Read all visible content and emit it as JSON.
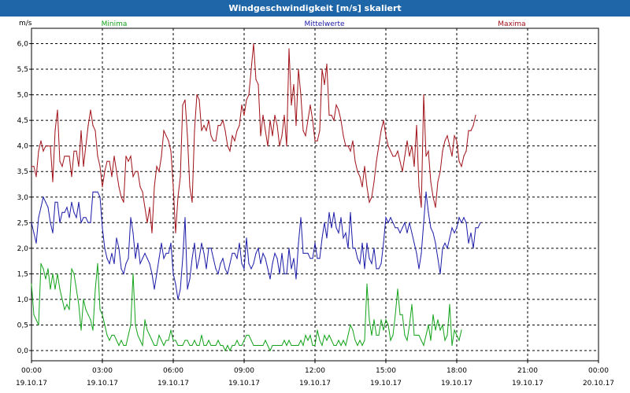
{
  "window": {
    "title": "Windgeschwindigkeit [m/s] skaliert"
  },
  "colors": {
    "titlebar": "#1f66a8",
    "minima": "#13a31a",
    "mittel": "#1a1aa8",
    "maxima": "#a01018",
    "grid": "#000000"
  },
  "chart_data": {
    "type": "line",
    "title": "Windgeschwindigkeit [m/s] skaliert",
    "ylabel": "m/s",
    "ylim": [
      -0.2,
      6.3
    ],
    "xlim": [
      0,
      24
    ],
    "grid": true,
    "legend": "top",
    "yticks": [
      "6,0",
      "5,5",
      "5,0",
      "4,5",
      "4,0",
      "3,5",
      "3,0",
      "2,5",
      "2,0",
      "1,5",
      "1,0",
      "0,5",
      "0,0"
    ],
    "ytick_values": [
      6.0,
      5.5,
      5.0,
      4.5,
      4.0,
      3.5,
      3.0,
      2.5,
      2.0,
      1.5,
      1.0,
      0.5,
      0.0
    ],
    "xticks": [
      {
        "time": "00:00",
        "date": "19.10.17",
        "hour": 0
      },
      {
        "time": "03:00",
        "date": "19.10.17",
        "hour": 3
      },
      {
        "time": "06:00",
        "date": "19.10.17",
        "hour": 6
      },
      {
        "time": "09:00",
        "date": "19.10.17",
        "hour": 9
      },
      {
        "time": "12:00",
        "date": "19.10.17",
        "hour": 12
      },
      {
        "time": "15:00",
        "date": "19.10.17",
        "hour": 15
      },
      {
        "time": "18:00",
        "date": "19.10.17",
        "hour": 18
      },
      {
        "time": "21:00",
        "date": "19.10.17",
        "hour": 21
      },
      {
        "time": "00:00",
        "date": "20.10.17",
        "hour": 24
      }
    ],
    "series": [
      {
        "name": "Minima",
        "color": "#13a31a",
        "legend_position": "left",
        "step_hours": 0.1,
        "values": [
          1.3,
          0.7,
          0.6,
          0.5,
          1.7,
          1.6,
          1.4,
          1.6,
          1.2,
          1.5,
          1.2,
          1.5,
          1.2,
          1.0,
          0.8,
          0.9,
          0.8,
          1.6,
          1.5,
          1.2,
          0.9,
          0.4,
          1.0,
          0.8,
          0.7,
          0.6,
          0.4,
          1.2,
          1.7,
          0.8,
          0.7,
          0.5,
          0.3,
          0.2,
          0.3,
          0.3,
          0.2,
          0.1,
          0.2,
          0.1,
          0.1,
          0.3,
          0.5,
          1.5,
          0.5,
          0.3,
          0.2,
          0.1,
          0.6,
          0.4,
          0.3,
          0.2,
          0.1,
          0.1,
          0.3,
          0.2,
          0.1,
          0.2,
          0.2,
          0.4,
          0.2,
          0.2,
          0.1,
          0.1,
          0.1,
          0.2,
          0.2,
          0.1,
          0.1,
          0.2,
          0.1,
          0.1,
          0.3,
          0.1,
          0.1,
          0.2,
          0.1,
          0.1,
          0.1,
          0.2,
          0.1,
          0.1,
          0.0,
          0.1,
          0.0,
          0.1,
          0.1,
          0.2,
          0.1,
          0.1,
          0.2,
          0.3,
          0.3,
          0.2,
          0.1,
          0.1,
          0.1,
          0.1,
          0.1,
          0.2,
          0.1,
          0.0,
          0.1,
          0.1,
          0.1,
          0.1,
          0.1,
          0.2,
          0.1,
          0.2,
          0.1,
          0.1,
          0.1,
          0.1,
          0.2,
          0.1,
          0.3,
          0.2,
          0.3,
          0.1,
          0.1,
          0.4,
          0.2,
          0.1,
          0.3,
          0.2,
          0.3,
          0.2,
          0.1,
          0.1,
          0.2,
          0.1,
          0.2,
          0.1,
          0.3,
          0.5,
          0.4,
          0.2,
          0.1,
          0.2,
          0.1,
          0.2,
          1.3,
          0.6,
          0.3,
          0.6,
          0.3,
          0.3,
          0.6,
          0.4,
          0.6,
          0.5,
          0.2,
          0.3,
          0.7,
          1.2,
          0.7,
          0.7,
          0.3,
          0.2,
          0.5,
          0.9,
          0.3,
          0.3,
          0.3,
          0.2,
          0.1,
          0.3,
          0.5,
          0.2,
          0.7,
          0.4,
          0.6,
          0.4,
          0.5,
          0.2,
          0.3,
          0.9,
          0.1,
          0.4,
          0.3,
          0.2,
          0.4
        ]
      },
      {
        "name": "Mittelwerte",
        "color": "#1a1aa8",
        "legend_position": "center",
        "step_hours": 0.1,
        "values": [
          2.5,
          2.3,
          2.1,
          2.6,
          2.8,
          3.0,
          2.9,
          2.8,
          2.5,
          2.3,
          2.9,
          2.9,
          2.5,
          2.7,
          2.7,
          2.8,
          2.6,
          2.9,
          2.7,
          2.6,
          2.9,
          2.5,
          2.6,
          2.6,
          2.5,
          2.5,
          3.1,
          3.1,
          3.1,
          3.0,
          2.4,
          2.0,
          1.8,
          1.7,
          1.9,
          1.7,
          2.2,
          2.0,
          1.6,
          1.5,
          1.7,
          1.8,
          2.6,
          2.3,
          1.8,
          2.1,
          1.7,
          1.8,
          1.9,
          1.8,
          1.7,
          1.5,
          1.2,
          1.5,
          1.8,
          2.1,
          1.8,
          1.9,
          1.9,
          2.1,
          1.5,
          1.3,
          1.0,
          1.2,
          1.8,
          2.6,
          1.2,
          1.4,
          1.8,
          2.1,
          1.6,
          1.8,
          2.1,
          1.9,
          1.6,
          2.0,
          2.0,
          1.8,
          1.6,
          1.5,
          1.7,
          1.8,
          1.6,
          1.5,
          1.7,
          1.9,
          1.9,
          1.8,
          2.1,
          1.7,
          1.6,
          2.2,
          1.7,
          1.6,
          1.7,
          1.9,
          2.0,
          1.7,
          1.9,
          1.8,
          1.6,
          1.4,
          1.7,
          1.9,
          1.8,
          1.5,
          1.9,
          1.5,
          1.5,
          2.0,
          1.6,
          1.8,
          1.4,
          2.1,
          2.6,
          1.9,
          1.9,
          1.9,
          1.8,
          1.8,
          2.1,
          1.8,
          1.8,
          2.2,
          2.5,
          2.2,
          2.7,
          2.4,
          2.7,
          2.4,
          2.3,
          2.6,
          2.2,
          2.3,
          2.0,
          2.7,
          2.0,
          2.0,
          1.8,
          1.7,
          2.1,
          1.6,
          2.1,
          1.8,
          1.7,
          2.0,
          1.6,
          1.6,
          1.7,
          2.1,
          2.6,
          2.5,
          2.6,
          2.5,
          2.4,
          2.4,
          2.3,
          2.4,
          2.5,
          2.3,
          2.5,
          2.3,
          2.1,
          1.9,
          1.6,
          1.9,
          2.5,
          3.1,
          2.7,
          2.4,
          2.3,
          2.1,
          1.8,
          1.5,
          2.0,
          2.1,
          2.0,
          2.2,
          2.4,
          2.3,
          2.4,
          2.6,
          2.5,
          2.6,
          2.5,
          2.1,
          2.3,
          2.0,
          2.4,
          2.4,
          2.5
        ]
      },
      {
        "name": "Maxima",
        "color": "#a01018",
        "legend_position": "right",
        "step_hours": 0.1,
        "values": [
          3.6,
          3.6,
          3.4,
          3.9,
          4.1,
          3.9,
          4.0,
          4.0,
          4.0,
          3.3,
          4.3,
          4.7,
          3.7,
          3.6,
          3.8,
          3.8,
          3.8,
          3.4,
          3.9,
          3.9,
          3.6,
          4.3,
          3.6,
          4.0,
          4.4,
          4.7,
          4.4,
          4.3,
          3.8,
          3.6,
          3.2,
          3.5,
          3.7,
          3.7,
          3.4,
          3.8,
          3.5,
          3.2,
          3.0,
          2.9,
          3.8,
          3.7,
          3.8,
          3.4,
          3.5,
          3.5,
          3.2,
          3.1,
          2.8,
          2.5,
          2.8,
          2.3,
          3.2,
          3.6,
          3.5,
          3.8,
          4.3,
          4.2,
          4.1,
          3.9,
          3.2,
          2.3,
          3.0,
          3.4,
          4.8,
          4.9,
          4.2,
          3.2,
          2.9,
          4.3,
          5.0,
          4.9,
          4.3,
          4.4,
          4.3,
          4.5,
          4.2,
          4.1,
          4.1,
          4.4,
          4.4,
          4.5,
          4.3,
          4.0,
          3.9,
          4.2,
          4.1,
          4.3,
          4.4,
          4.8,
          4.6,
          4.9,
          5.0,
          5.5,
          6.0,
          5.3,
          5.2,
          4.2,
          4.6,
          4.3,
          4.0,
          4.5,
          4.2,
          4.6,
          4.4,
          4.0,
          4.2,
          4.6,
          4.0,
          5.9,
          4.8,
          5.2,
          4.4,
          5.5,
          5.0,
          4.3,
          4.2,
          4.5,
          4.8,
          4.5,
          4.1,
          4.1,
          4.3,
          5.5,
          5.2,
          5.6,
          4.6,
          4.6,
          4.5,
          4.8,
          4.7,
          4.5,
          4.2,
          4.0,
          4.0,
          3.9,
          4.1,
          3.7,
          3.5,
          3.4,
          3.2,
          3.6,
          3.2,
          2.9,
          3.0,
          3.3,
          3.7,
          4.0,
          4.3,
          4.5,
          4.2,
          4.0,
          3.9,
          3.8,
          3.8,
          3.9,
          3.7,
          3.5,
          3.8,
          4.1,
          3.8,
          4.0,
          3.6,
          4.4,
          3.2,
          2.8,
          5.0,
          3.8,
          3.9,
          3.3,
          3.0,
          2.8,
          3.3,
          3.5,
          3.9,
          4.1,
          4.2,
          4.0,
          3.8,
          4.2,
          4.1,
          3.7,
          3.6,
          3.8,
          3.9,
          4.3,
          4.3,
          4.4,
          4.6
        ]
      }
    ]
  }
}
